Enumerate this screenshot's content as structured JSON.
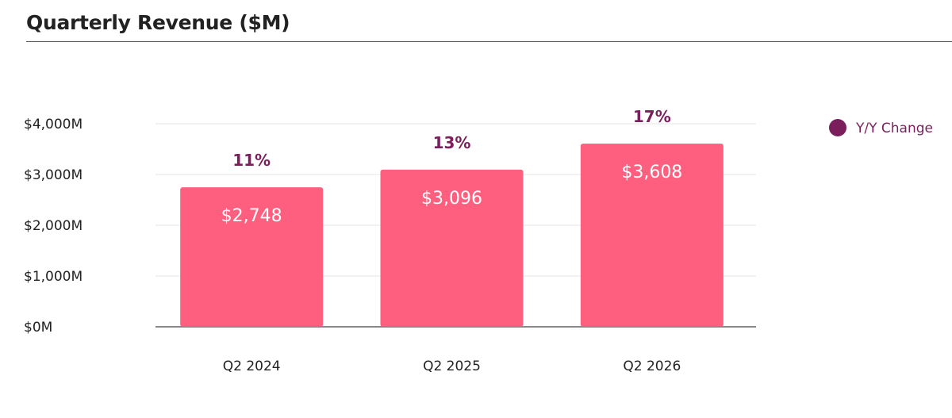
{
  "chart_data": {
    "type": "bar",
    "title": "Quarterly Revenue ($M)",
    "categories": [
      "Q2 2024",
      "Q2 2025",
      "Q2 2026"
    ],
    "values": [
      2748,
      3096,
      3608
    ],
    "value_labels": [
      "$2,748",
      "$3,096",
      "$3,608"
    ],
    "yoy_change": [
      "11%",
      "13%",
      "17%"
    ],
    "ylim": [
      0,
      4000
    ],
    "y_ticks": [
      0,
      1000,
      2000,
      3000,
      4000
    ],
    "y_tick_labels": [
      "$0M",
      "$1,000M",
      "$2,000M",
      "$3,000M",
      "$4,000M"
    ],
    "grid": true,
    "legend": {
      "placement": "right",
      "entries": [
        {
          "label": "Y/Y Change",
          "color": "#7a1f5c"
        }
      ]
    },
    "colors": {
      "bar": "#ff5f7e",
      "yoy": "#7a1f5c",
      "grid": "#e6e6e6",
      "axis": "#888888"
    }
  }
}
